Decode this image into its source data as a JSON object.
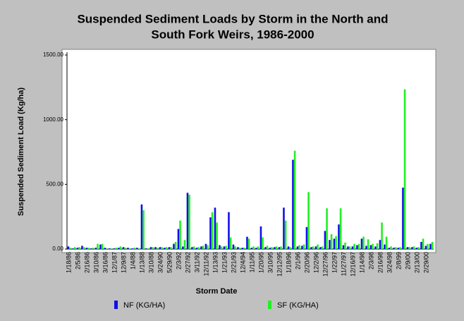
{
  "chart_data": {
    "type": "bar",
    "title": [
      "Suspended Sediment Loads by Storm in the North and",
      "South Fork Weirs, 1986-2000"
    ],
    "x_label": "Storm Date",
    "y_label": "Suspended Sediment Load (Kg/ha)",
    "categories": [
      "1/18/86",
      null,
      "2/5/86",
      null,
      "2/16/86",
      null,
      "3/10/86",
      null,
      "3/16/86",
      null,
      "12/1/87",
      null,
      "12/9/87",
      null,
      "1/4/88",
      null,
      "1/13/88",
      null,
      "3/10/88",
      null,
      "3/24/90",
      null,
      "5/29/90",
      null,
      "2/3/92",
      null,
      "2/27/92",
      null,
      "3/11/92",
      null,
      "12/11/92",
      null,
      "1/13/93",
      null,
      "1/21/93",
      null,
      "2/21/93",
      null,
      "12/4/94",
      null,
      "1/11/95",
      null,
      "1/20/95",
      null,
      "3/10/95",
      null,
      "12/12/95",
      null,
      "1/18/96",
      null,
      "2/1/96",
      null,
      "2/20/96",
      null,
      "12/2/96",
      null,
      "12/27/96",
      null,
      "1/22/97",
      null,
      "11/27/97",
      null,
      "12/16/97",
      null,
      "1/14/98",
      null,
      "2/3/98",
      null,
      "2/16/98",
      null,
      "3/24/98",
      null,
      "2/8/99",
      null,
      "2/9/00",
      null,
      "2/13/00",
      null,
      "2/29/00",
      null
    ],
    "series": [
      {
        "name": "NF (KG/HA)",
        "color": "#1010e8",
        "values": [
          20,
          5,
          10,
          25,
          10,
          5,
          10,
          35,
          10,
          5,
          5,
          10,
          15,
          10,
          5,
          10,
          345,
          5,
          15,
          15,
          15,
          10,
          15,
          40,
          155,
          20,
          435,
          15,
          10,
          20,
          40,
          245,
          320,
          30,
          20,
          285,
          35,
          15,
          10,
          95,
          10,
          10,
          175,
          15,
          10,
          15,
          15,
          320,
          20,
          690,
          20,
          25,
          170,
          15,
          20,
          15,
          140,
          70,
          80,
          190,
          30,
          20,
          20,
          30,
          80,
          25,
          30,
          20,
          70,
          35,
          10,
          10,
          10,
          475,
          15,
          15,
          10,
          55,
          25,
          40
        ]
      },
      {
        "name": "SF (KG/HA)",
        "color": "#20f020",
        "values": [
          10,
          15,
          15,
          15,
          10,
          10,
          40,
          40,
          5,
          5,
          10,
          20,
          10,
          5,
          10,
          5,
          300,
          5,
          15,
          10,
          15,
          15,
          15,
          55,
          220,
          70,
          420,
          20,
          15,
          25,
          30,
          285,
          205,
          20,
          25,
          90,
          20,
          10,
          10,
          80,
          20,
          20,
          90,
          25,
          15,
          20,
          20,
          220,
          15,
          760,
          30,
          35,
          440,
          20,
          35,
          20,
          315,
          115,
          100,
          315,
          50,
          20,
          40,
          40,
          95,
          75,
          40,
          45,
          205,
          95,
          20,
          15,
          15,
          1235,
          15,
          20,
          15,
          80,
          40,
          55
        ]
      }
    ],
    "ylim": [
      0,
      1500
    ],
    "yticks": [
      {
        "value": 0,
        "label": "0.00"
      },
      {
        "value": 500,
        "label": "500.00"
      },
      {
        "value": 1000,
        "label": "1000.00"
      },
      {
        "value": 1500,
        "label": "1500.00"
      }
    ]
  }
}
